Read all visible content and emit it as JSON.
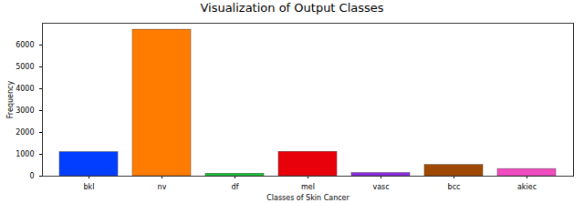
{
  "chart_data": {
    "type": "bar",
    "title": "Visualization of Output Classes",
    "x_label": "Classes of Skin Cancer",
    "y_label": "Frequency",
    "categories": [
      "bkl",
      "nv",
      "df",
      "mel",
      "vasc",
      "bcc",
      "akiec"
    ],
    "values": [
      1099,
      6705,
      115,
      1113,
      142,
      514,
      327
    ],
    "colors": [
      "#023eff",
      "#ff7c00",
      "#1ac938",
      "#e8000b",
      "#8b2be2",
      "#9f4800",
      "#f14cc1"
    ],
    "ylim": [
      0,
      7000
    ],
    "yticks": [
      0,
      1000,
      2000,
      3000,
      4000,
      5000,
      6000
    ],
    "grid": false
  }
}
